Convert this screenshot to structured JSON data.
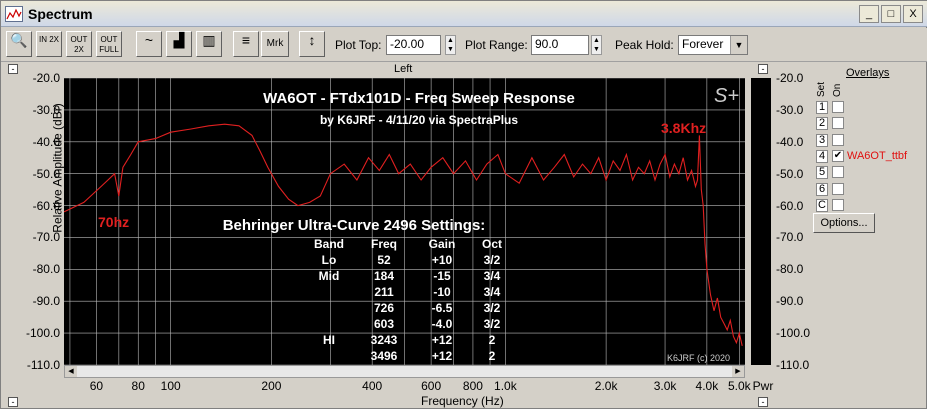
{
  "window": {
    "title": "Spectrum",
    "buttons": [
      "_",
      "□",
      "X"
    ]
  },
  "toolbar": {
    "buttons": [
      {
        "name": "zoom-icon",
        "label": "🔍"
      },
      {
        "name": "zoom-in-2x-button",
        "label": "IN 2X"
      },
      {
        "name": "zoom-out-2x-button",
        "label": "OUT 2X"
      },
      {
        "name": "zoom-out-full-button",
        "label": "OUT FULL"
      },
      {
        "name": "line-graph-button",
        "label": "~"
      },
      {
        "name": "bar-graph-button",
        "label": "▟"
      },
      {
        "name": "octave-bar-button",
        "label": "▥"
      },
      {
        "name": "settings-button",
        "label": "≡"
      },
      {
        "name": "marker-button",
        "label": "Mrk"
      },
      {
        "name": "scale-button",
        "label": "↕"
      }
    ],
    "plot_top_label": "Plot Top:",
    "plot_top_value": "-20.00",
    "plot_range_label": "Plot Range:",
    "plot_range_value": "90.0",
    "peak_hold_label": "Peak Hold:",
    "peak_hold_value": "Forever"
  },
  "channel_label": "Left",
  "axes": {
    "ylabel": "Relative Amplitude (dBr)",
    "xlabel": "Frequency (Hz)",
    "yticks": [
      "-20.0",
      "-30.0",
      "-40.0",
      "-50.0",
      "-60.0",
      "-70.0",
      "-80.0",
      "-90.0",
      "-100.0",
      "-110.0"
    ],
    "xticks": [
      {
        "label": "60",
        "f": 60
      },
      {
        "label": "80",
        "f": 80
      },
      {
        "label": "100",
        "f": 100
      },
      {
        "label": "200",
        "f": 200
      },
      {
        "label": "400",
        "f": 400
      },
      {
        "label": "600",
        "f": 600
      },
      {
        "label": "800",
        "f": 800
      },
      {
        "label": "1.0k",
        "f": 1000
      },
      {
        "label": "2.0k",
        "f": 2000
      },
      {
        "label": "3.0k",
        "f": 3000
      },
      {
        "label": "4.0k",
        "f": 4000
      },
      {
        "label": "5.0k",
        "f": 5000
      }
    ],
    "pwr_label": "Pwr"
  },
  "plot_text": {
    "title": "WA6OT - FTdx101D - Freq Sweep Response",
    "subtitle": "by K6JRF - 4/11/20  via SpectraPlus",
    "logo": "S+",
    "marker_low": "70hz",
    "marker_high": "3.8Khz",
    "settings_title": "Behringer Ultra-Curve 2496 Settings:",
    "settings_headers": [
      "Band",
      "Freq",
      "Gain",
      "Oct"
    ],
    "settings_rows": [
      [
        "Lo",
        "52",
        "+10",
        "3/2"
      ],
      [
        "Mid",
        "184",
        "-15",
        "3/4"
      ],
      [
        "",
        "211",
        "-10",
        "3/4"
      ],
      [
        "",
        "726",
        "-6.5",
        "3/2"
      ],
      [
        "",
        "603",
        "-4.0",
        "3/2"
      ],
      [
        "HI",
        "3243",
        "+12",
        "2"
      ],
      [
        "",
        "3496",
        "+12",
        "2"
      ]
    ],
    "copyright": "K6JRF (c) 2020"
  },
  "overlays": {
    "title": "Overlays",
    "set_label": "Set",
    "on_label": "On",
    "rows": [
      {
        "num": "1",
        "checked": false,
        "name": ""
      },
      {
        "num": "2",
        "checked": false,
        "name": ""
      },
      {
        "num": "3",
        "checked": false,
        "name": ""
      },
      {
        "num": "4",
        "checked": true,
        "name": "WA6OT_ttbf"
      },
      {
        "num": "5",
        "checked": false,
        "name": ""
      },
      {
        "num": "6",
        "checked": false,
        "name": ""
      },
      {
        "num": "C",
        "checked": false,
        "name": ""
      }
    ],
    "options_label": "Options..."
  },
  "chart_data": {
    "type": "line",
    "xscale": "log",
    "xlim": [
      48,
      5200
    ],
    "ylim": [
      -110,
      -20
    ],
    "ylabel": "Relative Amplitude (dBr)",
    "xlabel": "Frequency (Hz)",
    "trace_color": "#e02020",
    "series": [
      {
        "x": [
          48,
          55,
          62,
          68,
          70,
          72,
          76,
          80,
          90,
          100,
          115,
          130,
          145,
          160,
          175,
          185,
          195,
          210,
          225,
          240,
          260,
          280,
          300,
          330,
          360,
          390,
          420,
          450,
          480,
          520,
          560,
          600,
          650,
          700,
          760,
          820,
          880,
          950,
          1000,
          1100,
          1200,
          1300,
          1400,
          1500,
          1600,
          1700,
          1800,
          1900,
          2000,
          2100,
          2200,
          2300,
          2400,
          2500,
          2600,
          2700,
          2800,
          2900,
          3000,
          3100,
          3200,
          3300,
          3400,
          3500,
          3600,
          3700,
          3750,
          3800,
          3850,
          3900,
          3950,
          4000,
          4100,
          4200,
          4300,
          4400,
          4500,
          4600,
          4700,
          4800,
          4900,
          5000,
          5100
        ],
        "y": [
          -62,
          -59,
          -54,
          -50,
          -57,
          -48,
          -44,
          -40,
          -39,
          -37,
          -36,
          -35,
          -34.5,
          -35,
          -38,
          -43,
          -48,
          -54,
          -58,
          -60,
          -59,
          -57,
          -50,
          -47,
          -52,
          -45,
          -49,
          -44,
          -50,
          -47,
          -52,
          -48,
          -45,
          -50,
          -46,
          -52,
          -47,
          -44,
          -50,
          -53,
          -45,
          -52,
          -48,
          -44,
          -51,
          -47,
          -50,
          -45,
          -52,
          -46,
          -49,
          -44,
          -52,
          -48,
          -50,
          -46,
          -52,
          -47,
          -44,
          -51,
          -47,
          -50,
          -45,
          -52,
          -49,
          -54,
          -52,
          -38,
          -55,
          -60,
          -72,
          -80,
          -88,
          -93,
          -89,
          -95,
          -97,
          -99,
          -96,
          -101,
          -103,
          -100,
          -104
        ]
      }
    ]
  }
}
